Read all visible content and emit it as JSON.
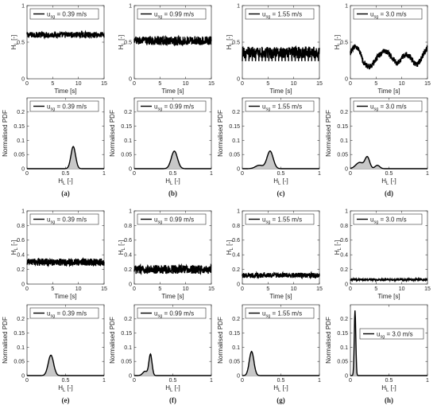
{
  "captions": [
    "(a)",
    "(b)",
    "(c)",
    "(d)",
    "(e)",
    "(f)",
    "(g)",
    "(h)"
  ],
  "chart_data": [
    {
      "type": "line",
      "group": "top",
      "row": "time",
      "xlabel": "Time [s]",
      "ylabel": "H_L [-]",
      "xlim": [
        0,
        15
      ],
      "ylim": [
        0,
        1
      ],
      "xticks": [
        "0",
        "5",
        "10",
        "15"
      ],
      "yticks": [
        "0",
        "0.5",
        "1"
      ],
      "legend": {
        "main": "u",
        "sub": "sg",
        "value": "= 0.39 m/s"
      },
      "series": [
        {
          "mean": 0.6,
          "noise": 0.04
        }
      ]
    },
    {
      "type": "line",
      "group": "top",
      "row": "time",
      "xlabel": "Time [s]",
      "ylabel": "H_L [-]",
      "xlim": [
        0,
        15
      ],
      "ylim": [
        0,
        1
      ],
      "xticks": [
        "0",
        "5",
        "10",
        "15"
      ],
      "yticks": [
        "0",
        "0.5",
        "1"
      ],
      "legend": {
        "main": "u",
        "sub": "sg",
        "value": "= 0.99 m/s"
      },
      "series": [
        {
          "mean": 0.52,
          "noise": 0.06
        }
      ]
    },
    {
      "type": "line",
      "group": "top",
      "row": "time",
      "xlabel": "Time [s]",
      "ylabel": "H_L [-]",
      "xlim": [
        0,
        15
      ],
      "ylim": [
        0,
        1
      ],
      "xticks": [
        "0",
        "5",
        "10",
        "15"
      ],
      "yticks": [
        "0",
        "0.5",
        "1"
      ],
      "legend": {
        "main": "u",
        "sub": "sg",
        "value": "= 1.55 m/s"
      },
      "series": [
        {
          "mean": 0.36,
          "noise": 0.08
        }
      ]
    },
    {
      "type": "line",
      "group": "top",
      "row": "time",
      "xlabel": "Time [s]",
      "ylabel": "H_L [-]",
      "xlim": [
        0,
        15
      ],
      "ylim": [
        0,
        1
      ],
      "xticks": [
        "0",
        "5",
        "10",
        "15"
      ],
      "yticks": [
        "0",
        "0.5",
        "1"
      ],
      "legend": {
        "main": "u",
        "sub": "sg",
        "value": "= 3.0 m/s"
      },
      "series": [
        {
          "mean": 0.25,
          "noise": 0.12
        }
      ]
    },
    {
      "type": "area",
      "group": "top",
      "row": "pdf",
      "caption": "(a)",
      "xlabel": "H_L [-]",
      "ylabel": "Normalised PDF",
      "xlim": [
        0,
        1
      ],
      "ylim": [
        0,
        0.25
      ],
      "xticks": [
        "0",
        "0.5",
        "1"
      ],
      "yticks": [
        "0",
        "0.05",
        "0.1",
        "0.15",
        "0.2"
      ],
      "legend": {
        "main": "u",
        "sub": "sg",
        "value": "= 0.39 m/s"
      },
      "peaks": [
        {
          "x": 0.6,
          "height": 0.078,
          "width": 0.03
        }
      ]
    },
    {
      "type": "area",
      "group": "top",
      "row": "pdf",
      "caption": "(b)",
      "xlabel": "H_L [-]",
      "ylabel": "Normalised PDF",
      "xlim": [
        0,
        1
      ],
      "ylim": [
        0,
        0.25
      ],
      "xticks": [
        "0",
        "0.5",
        "1"
      ],
      "yticks": [
        "0",
        "0.05",
        "0.1",
        "0.15",
        "0.2"
      ],
      "legend": {
        "main": "u",
        "sub": "sg",
        "value": "= 0.99 m/s"
      },
      "peaks": [
        {
          "x": 0.52,
          "height": 0.062,
          "width": 0.04
        }
      ]
    },
    {
      "type": "area",
      "group": "top",
      "row": "pdf",
      "caption": "(c)",
      "xlabel": "H_L [-]",
      "ylabel": "Normalised PDF",
      "xlim": [
        0,
        1
      ],
      "ylim": [
        0,
        0.25
      ],
      "xticks": [
        "0",
        "0.5",
        "1"
      ],
      "yticks": [
        "0",
        "0.05",
        "0.1",
        "0.15",
        "0.2"
      ],
      "legend": {
        "main": "u",
        "sub": "sg",
        "value": "= 1.55 m/s"
      },
      "peaks": [
        {
          "x": 0.36,
          "height": 0.062,
          "width": 0.04
        },
        {
          "x": 0.22,
          "height": 0.012,
          "width": 0.05
        }
      ]
    },
    {
      "type": "area",
      "group": "top",
      "row": "pdf",
      "caption": "(d)",
      "xlabel": "H_L [-]",
      "ylabel": "Normalised PDF",
      "xlim": [
        0,
        1
      ],
      "ylim": [
        0,
        0.25
      ],
      "xticks": [
        "0",
        "0.5",
        "1"
      ],
      "yticks": [
        "0",
        "0.05",
        "0.1",
        "0.15",
        "0.2"
      ],
      "legend": {
        "main": "u",
        "sub": "sg",
        "value": "= 3.0 m/s"
      },
      "peaks": [
        {
          "x": 0.22,
          "height": 0.04,
          "width": 0.03
        },
        {
          "x": 0.12,
          "height": 0.022,
          "width": 0.05
        },
        {
          "x": 0.35,
          "height": 0.012,
          "width": 0.03
        }
      ]
    },
    {
      "type": "line",
      "group": "bottom",
      "row": "time",
      "xlabel": "Time [s]",
      "ylabel": "H_L [-]",
      "xlim": [
        0,
        15
      ],
      "ylim": [
        0,
        1
      ],
      "xticks": [
        "0",
        "5",
        "10",
        "15"
      ],
      "yticks": [
        "0",
        "0.2",
        "0.4",
        "0.6",
        "0.8",
        "1"
      ],
      "legend": {
        "main": "u",
        "sub": "sg",
        "value": "= 0.39 m/s"
      },
      "series": [
        {
          "mean": 0.3,
          "noise": 0.05
        }
      ]
    },
    {
      "type": "line",
      "group": "bottom",
      "row": "time",
      "xlabel": "Time [s]",
      "ylabel": "H_L [-]",
      "xlim": [
        0,
        15
      ],
      "ylim": [
        0,
        1
      ],
      "xticks": [
        "0",
        "5",
        "10",
        "15"
      ],
      "yticks": [
        "0",
        "0.2",
        "0.4",
        "0.6",
        "0.8",
        "1"
      ],
      "legend": {
        "main": "u",
        "sub": "sg",
        "value": "= 0.99 m/s"
      },
      "series": [
        {
          "mean": 0.2,
          "noise": 0.06
        }
      ]
    },
    {
      "type": "line",
      "group": "bottom",
      "row": "time",
      "xlabel": "Time [s]",
      "ylabel": "H_L [-]",
      "xlim": [
        0,
        15
      ],
      "ylim": [
        0,
        1
      ],
      "xticks": [
        "0",
        "5",
        "10",
        "15"
      ],
      "yticks": [
        "0",
        "0.2",
        "0.4",
        "0.6",
        "0.8",
        "1"
      ],
      "legend": {
        "main": "u",
        "sub": "sg",
        "value": "= 1.55 m/s"
      },
      "series": [
        {
          "mean": 0.12,
          "noise": 0.035
        }
      ]
    },
    {
      "type": "line",
      "group": "bottom",
      "row": "time",
      "xlabel": "Time [s]",
      "ylabel": "H_L [-]",
      "xlim": [
        0,
        15
      ],
      "ylim": [
        0,
        1
      ],
      "xticks": [
        "0",
        "5",
        "10",
        "15"
      ],
      "yticks": [
        "0",
        "0.2",
        "0.4",
        "0.6",
        "0.8",
        "1"
      ],
      "legend": {
        "main": "u",
        "sub": "sg",
        "value": "= 3.0 m/s"
      },
      "series": [
        {
          "mean": 0.06,
          "noise": 0.012
        }
      ]
    },
    {
      "type": "area",
      "group": "bottom",
      "row": "pdf",
      "caption": "(e)",
      "xlabel": "H_L [-]",
      "ylabel": "Normalised PDF",
      "xlim": [
        0,
        1
      ],
      "ylim": [
        0,
        0.25
      ],
      "xticks": [
        "0",
        "0.5",
        "1"
      ],
      "yticks": [
        "0",
        "0.05",
        "0.1",
        "0.15",
        "0.2"
      ],
      "legend": {
        "main": "u",
        "sub": "sg",
        "value": "= 0.39 m/s"
      },
      "peaks": [
        {
          "x": 0.31,
          "height": 0.072,
          "width": 0.035
        }
      ]
    },
    {
      "type": "area",
      "group": "bottom",
      "row": "pdf",
      "caption": "(f)",
      "xlabel": "H_L [-]",
      "ylabel": "Normalised PDF",
      "xlim": [
        0,
        1
      ],
      "ylim": [
        0,
        0.25
      ],
      "xticks": [
        "0",
        "0.5",
        "1"
      ],
      "yticks": [
        "0",
        "0.05",
        "0.1",
        "0.15",
        "0.2"
      ],
      "legend": {
        "main": "u",
        "sub": "sg",
        "value": "= 0.99 m/s"
      },
      "peaks": [
        {
          "x": 0.21,
          "height": 0.075,
          "width": 0.02
        },
        {
          "x": 0.14,
          "height": 0.015,
          "width": 0.03
        }
      ]
    },
    {
      "type": "area",
      "group": "bottom",
      "row": "pdf",
      "caption": "(g)",
      "xlabel": "H_L [-]",
      "ylabel": "Normalised PDF",
      "xlim": [
        0,
        1
      ],
      "ylim": [
        0,
        0.25
      ],
      "xticks": [
        "0",
        "0.5",
        "1"
      ],
      "yticks": [
        "0",
        "0.05",
        "0.1",
        "0.15",
        "0.2"
      ],
      "legend": {
        "main": "u",
        "sub": "sg",
        "value": "= 1.55 m/s"
      },
      "peaks": [
        {
          "x": 0.12,
          "height": 0.085,
          "width": 0.03
        }
      ]
    },
    {
      "type": "area",
      "group": "bottom",
      "row": "pdf",
      "caption": "(h)",
      "xlabel": "H_L [-]",
      "ylabel": "Normalised PDF",
      "xlim": [
        0,
        1
      ],
      "ylim": [
        0,
        0.25
      ],
      "xticks": [
        "0",
        "0.5",
        "1"
      ],
      "yticks": [
        "0",
        "0.05",
        "0.1",
        "0.15",
        "0.2"
      ],
      "legend": {
        "main": "u",
        "sub": "sg",
        "value": "= 3.0 m/s"
      },
      "peaks": [
        {
          "x": 0.06,
          "height": 0.23,
          "width": 0.01
        }
      ]
    }
  ]
}
